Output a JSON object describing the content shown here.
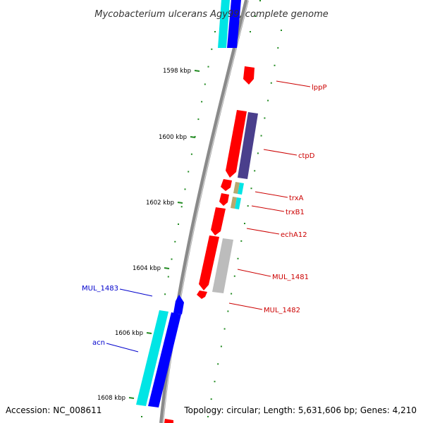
{
  "title": "Mycobacterium ulcerans Agy99, complete genome",
  "footer": {
    "accession": "Accession: NC_008611",
    "stats": "Topology: circular; Length: 5,631,606 bp; Genes: 4,210"
  },
  "ticks": [
    "1598 kbp",
    "1600 kbp",
    "1602 kbp",
    "1604 kbp",
    "1606 kbp",
    "1608 kbp"
  ],
  "colors": {
    "backbone": "#8a8a8a",
    "forward_cds": "#ff0000",
    "reverse_cds": "#0000ff",
    "forward_label": "#cc0000",
    "reverse_label": "#0000cc",
    "cyan_feature": "#00e5e5",
    "purple_feature": "#4a3f8c",
    "khaki_feature": "#b8a86e",
    "grey_feature": "#bcbcbc",
    "tick_mark": "#228b22"
  },
  "genes_right": [
    "lppP",
    "ctpD",
    "trxA",
    "trxB1",
    "echA12",
    "MUL_1481",
    "MUL_1482"
  ],
  "genes_left": [
    "MUL_1483",
    "acn"
  ]
}
